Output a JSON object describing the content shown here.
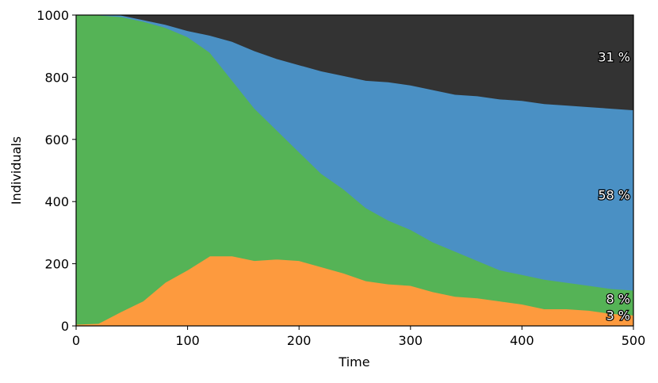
{
  "chart_data": {
    "type": "stacked_area",
    "x_label": "Time",
    "y_label": "Individuals",
    "x": [
      0,
      20,
      40,
      60,
      80,
      100,
      120,
      140,
      160,
      180,
      200,
      220,
      240,
      260,
      280,
      300,
      320,
      340,
      360,
      380,
      400,
      420,
      440,
      460,
      480,
      500
    ],
    "series": [
      {
        "color": "#fd9a3e",
        "values": [
          5,
          8,
          45,
          80,
          140,
          180,
          225,
          225,
          210,
          215,
          210,
          190,
          170,
          145,
          135,
          130,
          110,
          95,
          90,
          80,
          70,
          55,
          55,
          50,
          40,
          35
        ]
      },
      {
        "color": "#55b356",
        "values": [
          995,
          992,
          950,
          900,
          820,
          750,
          655,
          565,
          490,
          415,
          350,
          300,
          270,
          235,
          205,
          180,
          160,
          145,
          120,
          100,
          95,
          95,
          85,
          80,
          80,
          80
        ]
      },
      {
        "color": "#4a90c4",
        "values": [
          0,
          0,
          5,
          5,
          10,
          20,
          55,
          125,
          185,
          230,
          280,
          330,
          365,
          410,
          445,
          465,
          490,
          505,
          530,
          550,
          560,
          565,
          570,
          575,
          580,
          580
        ]
      },
      {
        "color": "#333333",
        "values": [
          0,
          0,
          0,
          15,
          30,
          50,
          65,
          85,
          115,
          140,
          160,
          180,
          195,
          210,
          215,
          225,
          240,
          255,
          260,
          270,
          275,
          285,
          290,
          295,
          300,
          305
        ]
      }
    ],
    "annotations": [
      "3 %",
      "8 %",
      "58 %",
      "31 %"
    ],
    "xlim": [
      0,
      500
    ],
    "xticks": [
      0,
      100,
      200,
      300,
      400,
      500
    ],
    "ylim": [
      0,
      1000
    ],
    "yticks": [
      0,
      200,
      400,
      600,
      800,
      1000
    ]
  }
}
